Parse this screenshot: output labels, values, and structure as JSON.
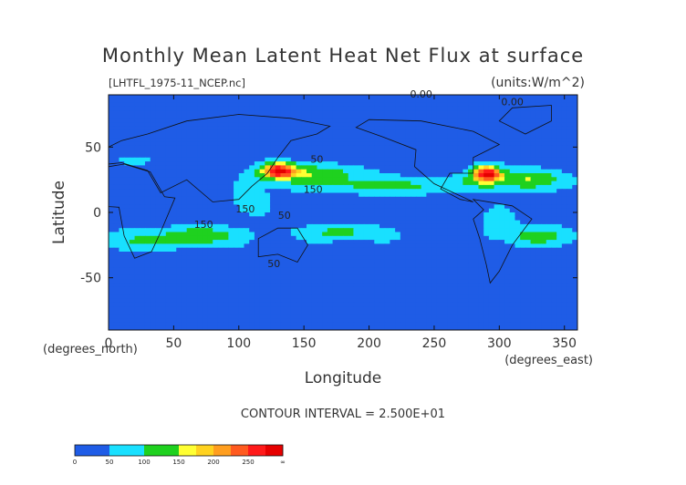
{
  "chart_data": {
    "type": "heatmap",
    "title": "Monthly Mean Latent Heat Net Flux at surface",
    "source_label": "[LHTFL_1975-11_NCEP.nc]",
    "units_label": "(units:W/m^2)",
    "xlabel": "Longitude",
    "ylabel": "Latitude",
    "x_unit_label": "(degrees_east)",
    "y_unit_label": "(degrees_north)",
    "xlim": [
      0,
      360
    ],
    "ylim": [
      -90,
      90
    ],
    "x_ticks": [
      0,
      50,
      100,
      150,
      200,
      250,
      300,
      350
    ],
    "y_ticks": [
      -50,
      0,
      50
    ],
    "contour_interval_text": "CONTOUR INTERVAL = 2.500E+01",
    "contour_labels": [
      {
        "text": "0.00",
        "lon": 240,
        "lat": 88
      },
      {
        "text": "0.00",
        "lon": 310,
        "lat": 82
      },
      {
        "text": "50",
        "lon": 160,
        "lat": 38
      },
      {
        "text": "150",
        "lon": 157,
        "lat": 15
      },
      {
        "text": "150",
        "lon": 105,
        "lat": 0
      },
      {
        "text": "50",
        "lon": 135,
        "lat": -5
      },
      {
        "text": "150",
        "lon": 73,
        "lat": -12
      },
      {
        "text": "50",
        "lon": 127,
        "lat": -42
      }
    ],
    "colorbar": {
      "levels": [
        "0",
        "50",
        "100",
        "150",
        "200",
        "250",
        "∞"
      ],
      "colors": [
        "#1f5ce6",
        "#1f5ce6",
        "#19e0ff",
        "#19e0ff",
        "#1fd11f",
        "#1fd11f",
        "#ffff33",
        "#ffd21f",
        "#ff9e1f",
        "#ff5a1f",
        "#ff1a1a",
        "#e60000"
      ]
    }
  }
}
